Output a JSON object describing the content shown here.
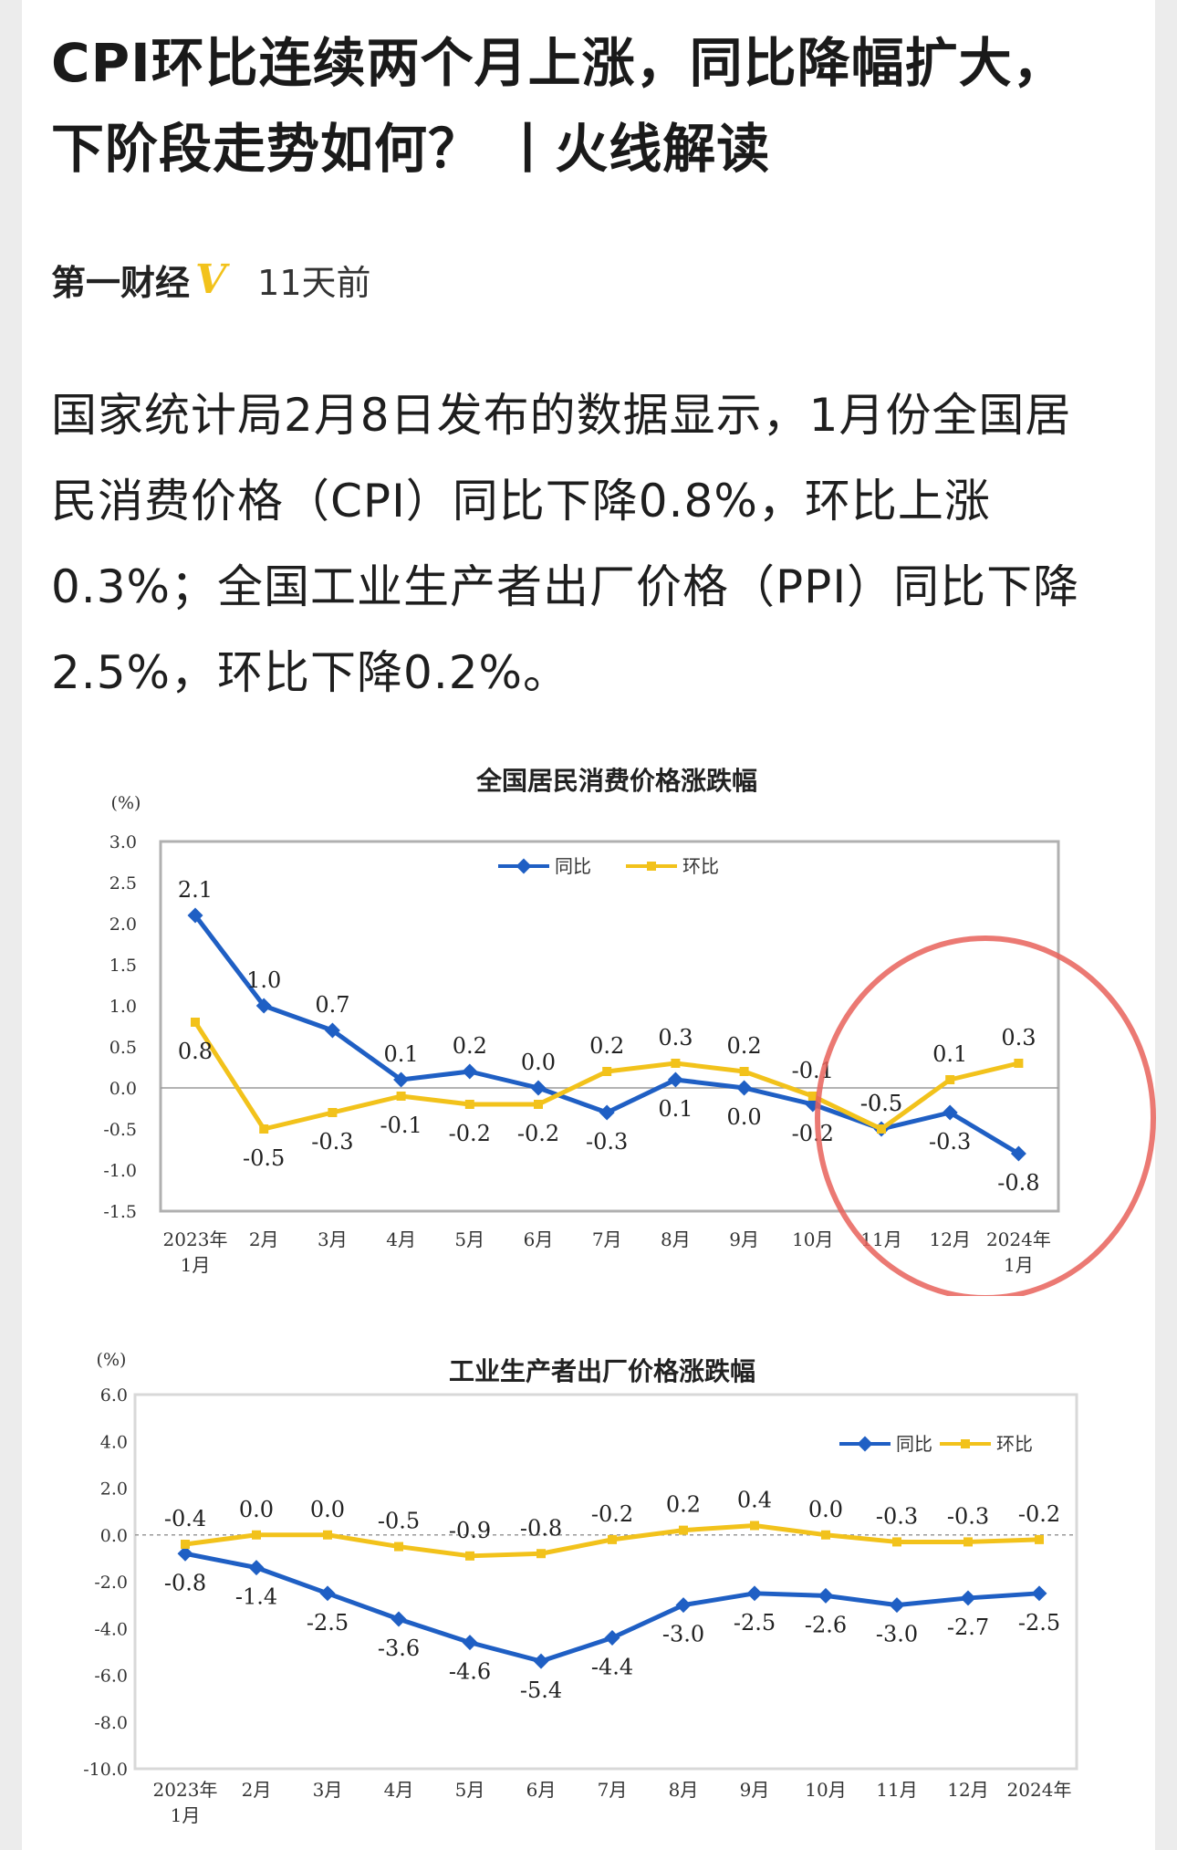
{
  "article": {
    "title": "CPI环比连续两个月上涨，同比降幅扩大，下阶段走势如何？ 丨火线解读",
    "source": "第一财经",
    "verified_badge": "V",
    "time": "11天前",
    "body": "国家统计局2月8日发布的数据显示，1月份全国居民消费价格（CPI）同比下降0.8%，环比上涨0.3%；全国工业生产者出厂价格（PPI）同比下降2.5%，环比下降0.2%。"
  },
  "colors": {
    "yoy": "#1f5fc4",
    "mom": "#f2c21b",
    "highlight_circle": "#e8625a"
  },
  "chart_data": [
    {
      "type": "line",
      "title": "全国居民消费价格涨跌幅",
      "ylabel": "(%)",
      "categories": [
        "2023年\n1月",
        "2月",
        "3月",
        "4月",
        "5月",
        "6月",
        "7月",
        "8月",
        "9月",
        "10月",
        "11月",
        "12月",
        "2024年\n1月"
      ],
      "ylim": [
        -1.5,
        3.0
      ],
      "yticks": [
        "3.0",
        "2.5",
        "2.0",
        "1.5",
        "1.0",
        "0.5",
        "0.0",
        "-0.5",
        "-1.0",
        "-1.5"
      ],
      "series": [
        {
          "name": "同比",
          "values": [
            2.1,
            1.0,
            0.7,
            0.1,
            0.2,
            0.0,
            -0.3,
            0.1,
            0.0,
            -0.2,
            -0.5,
            -0.3,
            -0.8
          ],
          "labels": [
            "2.1",
            "1.0",
            "0.7",
            "0.1",
            "0.2",
            "0.0",
            "-0.3",
            "0.1",
            "0.0",
            "-0.2",
            "-0.5",
            "-0.3",
            "-0.8"
          ]
        },
        {
          "name": "环比",
          "values": [
            0.8,
            -0.5,
            -0.3,
            -0.1,
            -0.2,
            -0.2,
            0.2,
            0.3,
            0.2,
            -0.1,
            -0.5,
            0.1,
            0.3
          ],
          "labels": [
            "0.8",
            "-0.5",
            "-0.3",
            "-0.1",
            "-0.2",
            "-0.2",
            "0.2",
            "0.3",
            "0.2",
            "-0.1",
            "-0.5",
            "0.1",
            "0.3"
          ]
        }
      ],
      "legend": "top-center",
      "grid": false,
      "annotation": "highlight circle around 10月–2024年1月"
    },
    {
      "type": "line",
      "title": "工业生产者出厂价格涨跌幅",
      "ylabel": "(%)",
      "categories": [
        "2023年\n1月",
        "2月",
        "3月",
        "4月",
        "5月",
        "6月",
        "7月",
        "8月",
        "9月",
        "10月",
        "11月",
        "12月",
        "2024年"
      ],
      "ylim": [
        -10.0,
        6.0
      ],
      "yticks": [
        "6.0",
        "4.0",
        "2.0",
        "0.0",
        "-2.0",
        "-4.0",
        "-6.0",
        "-8.0",
        "-10.0"
      ],
      "series": [
        {
          "name": "同比",
          "values": [
            -0.8,
            -1.4,
            -2.5,
            -3.6,
            -4.6,
            -5.4,
            -4.4,
            -3.0,
            -2.5,
            -2.6,
            -3.0,
            -2.7,
            -2.5
          ],
          "labels": [
            "-0.8",
            "-1.4",
            "-2.5",
            "-3.6",
            "-4.6",
            "-5.4",
            "-4.4",
            "-3.0",
            "-2.5",
            "-2.6",
            "-3.0",
            "-2.7",
            "-2.5"
          ]
        },
        {
          "name": "环比",
          "values": [
            -0.4,
            0.0,
            0.0,
            -0.5,
            -0.9,
            -0.8,
            -0.2,
            0.2,
            0.4,
            0.0,
            -0.3,
            -0.3,
            -0.2
          ],
          "labels": [
            "-0.4",
            "0.0",
            "0.0",
            "-0.5",
            "-0.9",
            "-0.8",
            "-0.2",
            "0.2",
            "0.4",
            "0.0",
            "-0.3",
            "-0.3",
            "-0.2"
          ]
        }
      ],
      "legend": "top-right",
      "grid": false
    }
  ]
}
